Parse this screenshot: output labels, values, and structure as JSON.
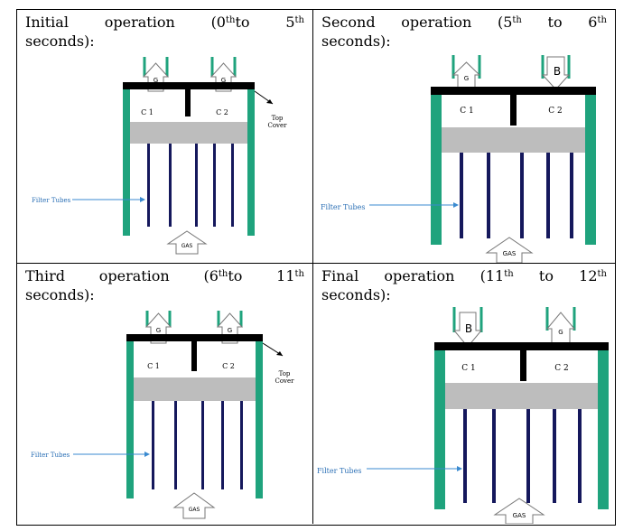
{
  "panels": [
    {
      "heading_parts": [
        "Initial",
        "operation",
        "(0",
        "th",
        "to",
        "5",
        "th"
      ],
      "heading_line2": "seconds):",
      "valve_left": "G",
      "valve_right": "G",
      "chamber_left": "C 1",
      "chamber_right": "C 2",
      "top_cover": [
        "Top",
        "Cover"
      ],
      "filter_label": "Filter Tubes",
      "gas_label": "GAS"
    },
    {
      "heading_parts": [
        "Second",
        "operation",
        "(5",
        "th",
        "to",
        "6",
        "th"
      ],
      "heading_line2": "seconds):",
      "valve_left": "G",
      "valve_right": "B",
      "chamber_left": "C 1",
      "chamber_right": "C 2",
      "filter_label": "Filter Tubes",
      "gas_label": "GAS"
    },
    {
      "heading_parts": [
        "Third",
        "operation",
        "(6",
        "th",
        "to",
        "11",
        "th"
      ],
      "heading_line2": "seconds):",
      "valve_left": "G",
      "valve_right": "G",
      "chamber_left": "C 1",
      "chamber_right": "C 2",
      "top_cover": [
        "Top",
        "Cover"
      ],
      "filter_label": "Filter Tubes",
      "gas_label": "GAS"
    },
    {
      "heading_parts": [
        "Final",
        "operation",
        "(11",
        "th",
        "to",
        "12",
        "th"
      ],
      "heading_line2": "seconds):",
      "valve_left": "B",
      "valve_right": "G",
      "chamber_left": "C 1",
      "chamber_right": "C 2",
      "filter_label": "Filter Tubes",
      "gas_label": "GAS"
    }
  ],
  "colors": {
    "wall": "#1fa37d",
    "tube": "#15185c",
    "plenum": "#bdbdbd",
    "cover": "#000000",
    "arrow_line": "#3a8ad0"
  }
}
